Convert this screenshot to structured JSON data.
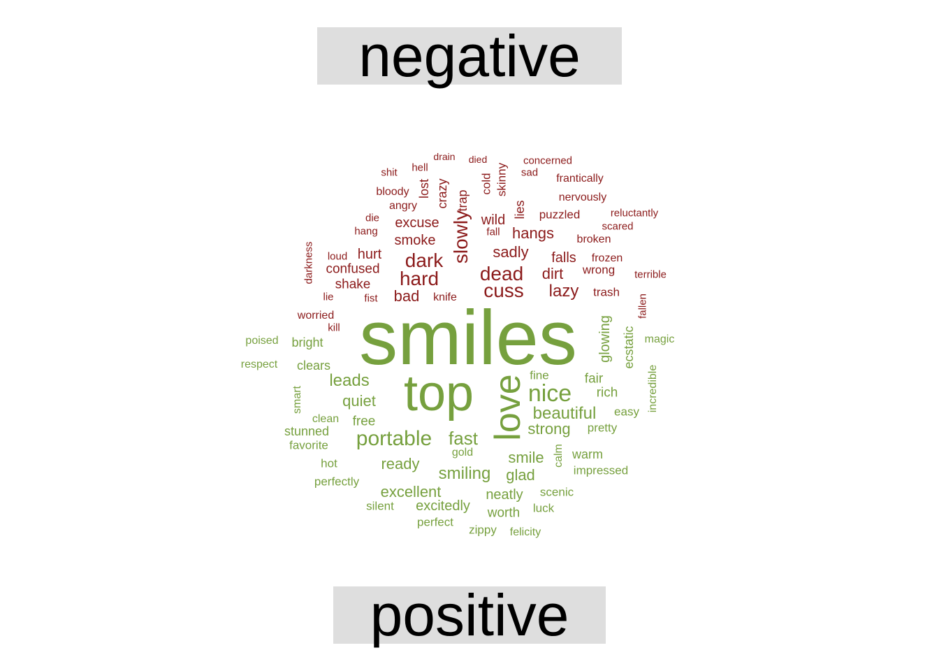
{
  "labels": {
    "negative": "negative",
    "positive": "positive"
  },
  "colors": {
    "negative": "#8b1a1a",
    "positive": "#76a03e",
    "label_bg": "#dedede"
  },
  "negative_words": [
    [
      "drain",
      14,
      0
    ],
    [
      "died",
      14,
      0
    ],
    [
      "concerned",
      15,
      0
    ],
    [
      "shit",
      15,
      0
    ],
    [
      "hell",
      15,
      0
    ],
    [
      "sad",
      15,
      0
    ],
    [
      "frantically",
      16,
      0
    ],
    [
      "bloody",
      16,
      0
    ],
    [
      "lost",
      18,
      1
    ],
    [
      "crazy",
      18,
      1
    ],
    [
      "trap",
      18,
      1
    ],
    [
      "cold",
      17,
      1
    ],
    [
      "skinny",
      17,
      1
    ],
    [
      "angry",
      16,
      0
    ],
    [
      "nervously",
      16,
      0
    ],
    [
      "die",
      15,
      0
    ],
    [
      "lies",
      18,
      1
    ],
    [
      "puzzled",
      17,
      0
    ],
    [
      "reluctantly",
      15,
      0
    ],
    [
      "excuse",
      20,
      0
    ],
    [
      "wild",
      20,
      0
    ],
    [
      "hang",
      15,
      0
    ],
    [
      "fall",
      15,
      0
    ],
    [
      "hangs",
      22,
      0
    ],
    [
      "scared",
      15,
      0
    ],
    [
      "smoke",
      20,
      0
    ],
    [
      "slowly",
      28,
      1
    ],
    [
      "broken",
      16,
      0
    ],
    [
      "darkness",
      15,
      1
    ],
    [
      "loud",
      15,
      0
    ],
    [
      "hurt",
      20,
      0
    ],
    [
      "dark",
      28,
      0
    ],
    [
      "sadly",
      22,
      0
    ],
    [
      "falls",
      20,
      0
    ],
    [
      "frozen",
      16,
      0
    ],
    [
      "confused",
      19,
      0
    ],
    [
      "wrong",
      17,
      0
    ],
    [
      "dead",
      28,
      0
    ],
    [
      "dirt",
      22,
      0
    ],
    [
      "hard",
      28,
      0
    ],
    [
      "terrible",
      15,
      0
    ],
    [
      "shake",
      19,
      0
    ],
    [
      "cuss",
      28,
      0
    ],
    [
      "lazy",
      24,
      0
    ],
    [
      "trash",
      17,
      0
    ],
    [
      "fallen",
      15,
      1
    ],
    [
      "lie",
      15,
      0
    ],
    [
      "fist",
      15,
      0
    ],
    [
      "bad",
      22,
      0
    ],
    [
      "knife",
      16,
      0
    ],
    [
      "worried",
      16,
      0
    ],
    [
      "kill",
      15,
      0
    ]
  ],
  "positive_words": [
    [
      "smiles",
      110,
      0
    ],
    [
      "top",
      72,
      0
    ],
    [
      "love",
      52,
      1
    ],
    [
      "nice",
      34,
      0
    ],
    [
      "poised",
      16,
      0
    ],
    [
      "bright",
      18,
      0
    ],
    [
      "glowing",
      20,
      1
    ],
    [
      "ecstatic",
      18,
      1
    ],
    [
      "magic",
      16,
      0
    ],
    [
      "respect",
      16,
      0
    ],
    [
      "clears",
      18,
      0
    ],
    [
      "incredible",
      16,
      1
    ],
    [
      "leads",
      24,
      0
    ],
    [
      "fine",
      17,
      0
    ],
    [
      "fair",
      19,
      0
    ],
    [
      "smart",
      16,
      1
    ],
    [
      "quiet",
      22,
      0
    ],
    [
      "rich",
      19,
      0
    ],
    [
      "beautiful",
      24,
      0
    ],
    [
      "easy",
      17,
      0
    ],
    [
      "clean",
      16,
      0
    ],
    [
      "free",
      19,
      0
    ],
    [
      "strong",
      22,
      0
    ],
    [
      "pretty",
      17,
      0
    ],
    [
      "stunned",
      18,
      0
    ],
    [
      "portable",
      30,
      0
    ],
    [
      "fast",
      26,
      0
    ],
    [
      "favorite",
      17,
      0
    ],
    [
      "calm",
      16,
      1
    ],
    [
      "gold",
      16,
      0
    ],
    [
      "warm",
      18,
      0
    ],
    [
      "hot",
      17,
      0
    ],
    [
      "smile",
      22,
      0
    ],
    [
      "ready",
      22,
      0
    ],
    [
      "impressed",
      17,
      0
    ],
    [
      "smiling",
      24,
      0
    ],
    [
      "glad",
      22,
      0
    ],
    [
      "perfectly",
      17,
      0
    ],
    [
      "excellent",
      22,
      0
    ],
    [
      "scenic",
      17,
      0
    ],
    [
      "neatly",
      20,
      0
    ],
    [
      "silent",
      17,
      0
    ],
    [
      "excitedly",
      20,
      0
    ],
    [
      "luck",
      17,
      0
    ],
    [
      "worth",
      19,
      0
    ],
    [
      "perfect",
      17,
      0
    ],
    [
      "zippy",
      17,
      0
    ],
    [
      "felicity",
      16,
      0
    ]
  ]
}
